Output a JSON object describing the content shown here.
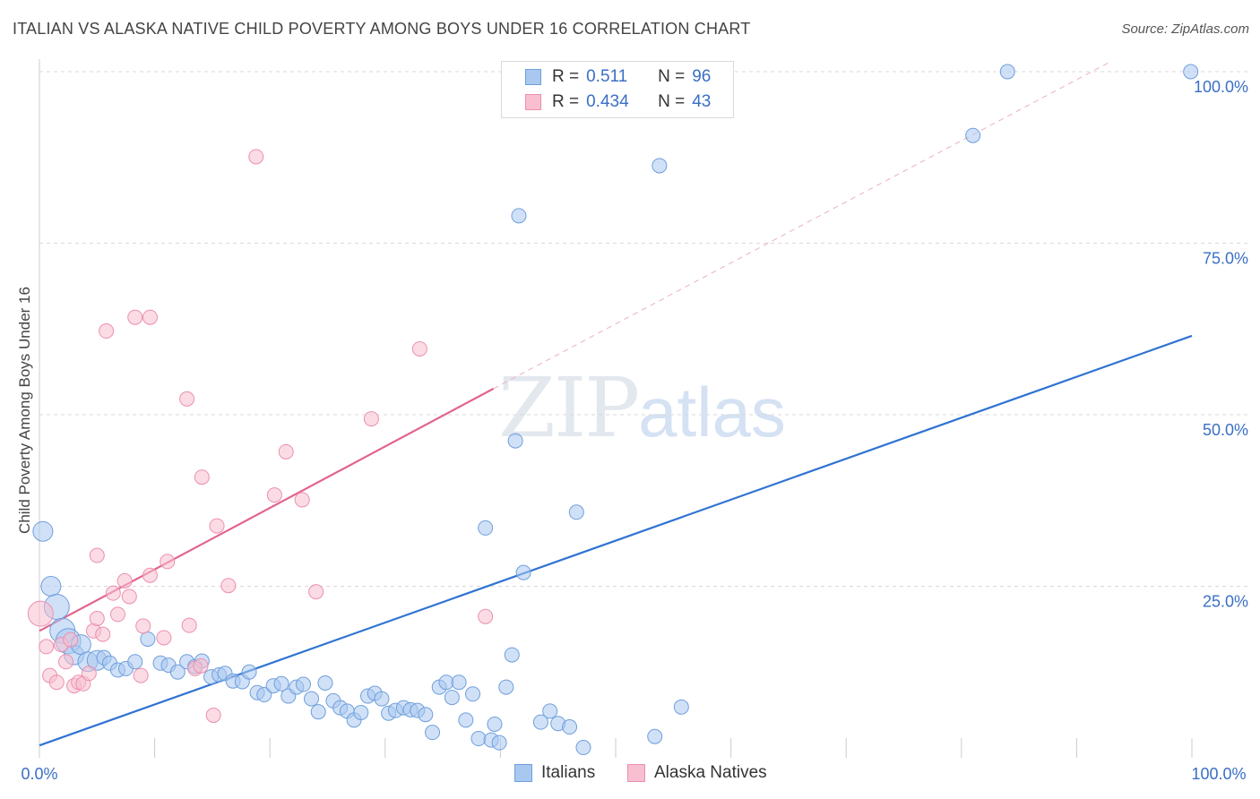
{
  "title": "ITALIAN VS ALASKA NATIVE CHILD POVERTY AMONG BOYS UNDER 16 CORRELATION CHART",
  "source": "Source: ZipAtlas.com",
  "watermark": {
    "zip": "ZIP",
    "atlas": "atlas"
  },
  "colors": {
    "italians_fill": "#a9c8f0",
    "italians_stroke": "#6f9fdc",
    "italians_line": "#2f73d2",
    "natives_fill": "#f7bfd0",
    "natives_stroke": "#ec8fae",
    "natives_line": "#e2648e",
    "grid": "#d9d9d9",
    "axis_text": "#3a6fc4"
  },
  "legend": {
    "italians": {
      "r_label": "R =",
      "r_value": "0.511",
      "n_label": "N =",
      "n_value": "96"
    },
    "natives": {
      "r_label": "R =",
      "r_value": "0.434",
      "n_label": "N =",
      "n_value": "43"
    }
  },
  "chart_data": {
    "type": "scatter",
    "title": "ITALIAN VS ALASKA NATIVE CHILD POVERTY AMONG BOYS UNDER 16 CORRELATION CHART",
    "xlabel": "",
    "ylabel": "Child Poverty Among Boys Under 16",
    "xlim": [
      0,
      100
    ],
    "ylim": [
      0,
      100
    ],
    "x_tick_labels": [
      "0.0%",
      "100.0%"
    ],
    "y_tick_labels": [
      "25.0%",
      "50.0%",
      "75.0%",
      "100.0%"
    ],
    "y_ticks": [
      25,
      50,
      75,
      100
    ],
    "grid": true,
    "legend_position": "top-center",
    "series": [
      {
        "name": "Italians",
        "trend": {
          "x": [
            0,
            100
          ],
          "y": [
            1.8,
            61.5
          ],
          "dashed_extension": false
        },
        "points": [
          {
            "x": 0.3,
            "y": 33.0,
            "s": 2
          },
          {
            "x": 1.0,
            "y": 25.0,
            "s": 2
          },
          {
            "x": 1.5,
            "y": 22.0,
            "s": 3
          },
          {
            "x": 2.0,
            "y": 18.5,
            "s": 3
          },
          {
            "x": 2.5,
            "y": 17.0,
            "s": 3
          },
          {
            "x": 3.0,
            "y": 15.0,
            "s": 2
          },
          {
            "x": 3.6,
            "y": 16.5,
            "s": 2
          },
          {
            "x": 4.2,
            "y": 14.0,
            "s": 2
          },
          {
            "x": 5.0,
            "y": 14.2,
            "s": 2
          },
          {
            "x": 5.6,
            "y": 14.6,
            "s": 1
          },
          {
            "x": 6.1,
            "y": 13.8,
            "s": 1
          },
          {
            "x": 6.8,
            "y": 12.8,
            "s": 1
          },
          {
            "x": 7.5,
            "y": 13.0,
            "s": 1
          },
          {
            "x": 8.3,
            "y": 14.0,
            "s": 1
          },
          {
            "x": 9.4,
            "y": 17.3,
            "s": 1
          },
          {
            "x": 10.5,
            "y": 13.8,
            "s": 1
          },
          {
            "x": 11.2,
            "y": 13.5,
            "s": 1
          },
          {
            "x": 12.0,
            "y": 12.5,
            "s": 1
          },
          {
            "x": 12.8,
            "y": 14.0,
            "s": 1
          },
          {
            "x": 13.5,
            "y": 13.3,
            "s": 1
          },
          {
            "x": 14.1,
            "y": 14.1,
            "s": 1
          },
          {
            "x": 14.9,
            "y": 11.8,
            "s": 1
          },
          {
            "x": 15.6,
            "y": 12.1,
            "s": 1
          },
          {
            "x": 16.1,
            "y": 12.3,
            "s": 1
          },
          {
            "x": 16.8,
            "y": 11.2,
            "s": 1
          },
          {
            "x": 17.6,
            "y": 11.1,
            "s": 1
          },
          {
            "x": 18.2,
            "y": 12.5,
            "s": 1
          },
          {
            "x": 18.9,
            "y": 9.5,
            "s": 1
          },
          {
            "x": 19.5,
            "y": 9.2,
            "s": 1
          },
          {
            "x": 20.3,
            "y": 10.5,
            "s": 1
          },
          {
            "x": 21.0,
            "y": 10.8,
            "s": 1
          },
          {
            "x": 21.6,
            "y": 9.0,
            "s": 1
          },
          {
            "x": 22.3,
            "y": 10.3,
            "s": 1
          },
          {
            "x": 22.9,
            "y": 10.7,
            "s": 1
          },
          {
            "x": 23.6,
            "y": 8.6,
            "s": 1
          },
          {
            "x": 24.2,
            "y": 6.7,
            "s": 1
          },
          {
            "x": 24.8,
            "y": 10.9,
            "s": 1
          },
          {
            "x": 25.5,
            "y": 8.3,
            "s": 1
          },
          {
            "x": 26.1,
            "y": 7.3,
            "s": 1
          },
          {
            "x": 26.7,
            "y": 6.8,
            "s": 1
          },
          {
            "x": 27.3,
            "y": 5.5,
            "s": 1
          },
          {
            "x": 27.9,
            "y": 6.6,
            "s": 1
          },
          {
            "x": 28.5,
            "y": 9.0,
            "s": 1
          },
          {
            "x": 29.1,
            "y": 9.4,
            "s": 1
          },
          {
            "x": 29.7,
            "y": 8.6,
            "s": 1
          },
          {
            "x": 30.3,
            "y": 6.5,
            "s": 1
          },
          {
            "x": 30.9,
            "y": 6.9,
            "s": 1
          },
          {
            "x": 31.6,
            "y": 7.3,
            "s": 1
          },
          {
            "x": 32.2,
            "y": 7.0,
            "s": 1
          },
          {
            "x": 32.8,
            "y": 6.9,
            "s": 1
          },
          {
            "x": 33.5,
            "y": 6.3,
            "s": 1
          },
          {
            "x": 34.1,
            "y": 3.7,
            "s": 1
          },
          {
            "x": 34.7,
            "y": 10.3,
            "s": 1
          },
          {
            "x": 35.3,
            "y": 11.0,
            "s": 1
          },
          {
            "x": 35.8,
            "y": 8.8,
            "s": 1
          },
          {
            "x": 36.4,
            "y": 11.0,
            "s": 1
          },
          {
            "x": 37.0,
            "y": 5.5,
            "s": 1
          },
          {
            "x": 37.6,
            "y": 9.3,
            "s": 1
          },
          {
            "x": 38.1,
            "y": 2.8,
            "s": 1
          },
          {
            "x": 38.7,
            "y": 33.5,
            "s": 1
          },
          {
            "x": 39.2,
            "y": 2.6,
            "s": 1
          },
          {
            "x": 39.5,
            "y": 4.9,
            "s": 1
          },
          {
            "x": 39.9,
            "y": 2.2,
            "s": 1
          },
          {
            "x": 40.5,
            "y": 10.3,
            "s": 1
          },
          {
            "x": 41.0,
            "y": 15.0,
            "s": 1
          },
          {
            "x": 41.3,
            "y": 46.2,
            "s": 1
          },
          {
            "x": 41.6,
            "y": 79.0,
            "s": 1
          },
          {
            "x": 42.0,
            "y": 27.0,
            "s": 1
          },
          {
            "x": 43.5,
            "y": 5.2,
            "s": 1
          },
          {
            "x": 44.3,
            "y": 6.8,
            "s": 1
          },
          {
            "x": 45.0,
            "y": 5.0,
            "s": 1
          },
          {
            "x": 46.0,
            "y": 4.5,
            "s": 1
          },
          {
            "x": 46.6,
            "y": 35.8,
            "s": 1
          },
          {
            "x": 47.2,
            "y": 1.5,
            "s": 1
          },
          {
            "x": 53.4,
            "y": 3.1,
            "s": 1
          },
          {
            "x": 53.8,
            "y": 86.3,
            "s": 1
          },
          {
            "x": 55.7,
            "y": 7.4,
            "s": 1
          },
          {
            "x": 81.0,
            "y": 90.7,
            "s": 1
          },
          {
            "x": 84.0,
            "y": 100.0,
            "s": 1
          },
          {
            "x": 99.9,
            "y": 100.0,
            "s": 1
          }
        ]
      },
      {
        "name": "Alaska Natives",
        "trend": {
          "x": [
            0,
            39.4
          ],
          "y": [
            18.5,
            53.8
          ],
          "dashed_extension": {
            "x": [
              39.4,
              93.0
            ],
            "y": [
              53.8,
              101.5
            ]
          }
        },
        "points": [
          {
            "x": 0.1,
            "y": 21.0,
            "s": 3
          },
          {
            "x": 0.6,
            "y": 16.2,
            "s": 1
          },
          {
            "x": 0.9,
            "y": 12.0,
            "s": 1
          },
          {
            "x": 1.5,
            "y": 11.0,
            "s": 1
          },
          {
            "x": 1.9,
            "y": 16.5,
            "s": 1
          },
          {
            "x": 2.3,
            "y": 14.0,
            "s": 1
          },
          {
            "x": 2.7,
            "y": 17.2,
            "s": 1
          },
          {
            "x": 3.0,
            "y": 10.5,
            "s": 1
          },
          {
            "x": 3.4,
            "y": 11.0,
            "s": 1
          },
          {
            "x": 3.8,
            "y": 10.8,
            "s": 1
          },
          {
            "x": 4.3,
            "y": 12.3,
            "s": 1
          },
          {
            "x": 4.7,
            "y": 18.5,
            "s": 1
          },
          {
            "x": 5.0,
            "y": 20.3,
            "s": 1
          },
          {
            "x": 5.0,
            "y": 29.5,
            "s": 1
          },
          {
            "x": 5.5,
            "y": 18.0,
            "s": 1
          },
          {
            "x": 5.8,
            "y": 62.2,
            "s": 1
          },
          {
            "x": 6.4,
            "y": 24.0,
            "s": 1
          },
          {
            "x": 6.8,
            "y": 20.9,
            "s": 1
          },
          {
            "x": 7.4,
            "y": 25.8,
            "s": 1
          },
          {
            "x": 7.8,
            "y": 23.5,
            "s": 1
          },
          {
            "x": 8.3,
            "y": 64.2,
            "s": 1
          },
          {
            "x": 8.8,
            "y": 12.0,
            "s": 1
          },
          {
            "x": 9.0,
            "y": 19.2,
            "s": 1
          },
          {
            "x": 9.6,
            "y": 26.6,
            "s": 1
          },
          {
            "x": 9.6,
            "y": 64.2,
            "s": 1
          },
          {
            "x": 10.8,
            "y": 17.5,
            "s": 1
          },
          {
            "x": 11.1,
            "y": 28.6,
            "s": 1
          },
          {
            "x": 12.8,
            "y": 52.3,
            "s": 1
          },
          {
            "x": 13.0,
            "y": 19.3,
            "s": 1
          },
          {
            "x": 13.5,
            "y": 13.0,
            "s": 1
          },
          {
            "x": 14.0,
            "y": 13.4,
            "s": 1
          },
          {
            "x": 14.1,
            "y": 40.9,
            "s": 1
          },
          {
            "x": 15.1,
            "y": 6.2,
            "s": 1
          },
          {
            "x": 15.4,
            "y": 33.8,
            "s": 1
          },
          {
            "x": 16.4,
            "y": 25.1,
            "s": 1
          },
          {
            "x": 18.8,
            "y": 87.6,
            "s": 1
          },
          {
            "x": 20.4,
            "y": 38.3,
            "s": 1
          },
          {
            "x": 21.4,
            "y": 44.6,
            "s": 1
          },
          {
            "x": 22.8,
            "y": 37.6,
            "s": 1
          },
          {
            "x": 24.0,
            "y": 24.2,
            "s": 1
          },
          {
            "x": 28.8,
            "y": 49.4,
            "s": 1
          },
          {
            "x": 33.0,
            "y": 59.6,
            "s": 1
          },
          {
            "x": 38.7,
            "y": 20.6,
            "s": 1
          }
        ]
      }
    ]
  },
  "bottom_legend": {
    "italians": "Italians",
    "natives": "Alaska Natives"
  }
}
